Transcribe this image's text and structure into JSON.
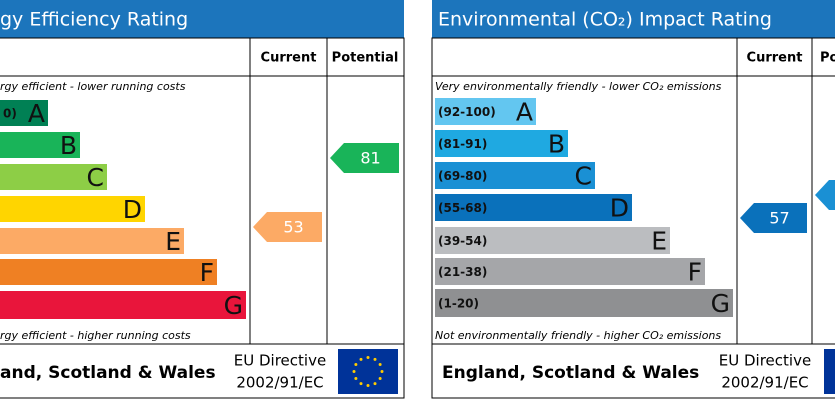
{
  "panels": [
    {
      "title": "gy Efficiency Rating",
      "current_label": "Current",
      "potential_label": "Potential",
      "top_note": "rgy efficient - lower running costs",
      "bottom_note": "rgy efficient - higher running costs",
      "bands": [
        {
          "label": "0)",
          "letter": "A",
          "color": "#008054"
        },
        {
          "letter": "B",
          "color": "#19b459"
        },
        {
          "letter": "C",
          "color": "#8dce46"
        },
        {
          "letter": "D",
          "color": "#ffd500"
        },
        {
          "letter": "E",
          "color": "#fcaa65"
        },
        {
          "letter": "F",
          "color": "#ef8023"
        },
        {
          "letter": "G",
          "color": "#e9153b"
        }
      ],
      "current": {
        "value": 53,
        "color": "#fcaa65"
      },
      "potential": {
        "value": 81,
        "color": "#19b459"
      },
      "footer": "and, Scotland & Wales",
      "directive": [
        "EU Directive",
        "2002/91/EC"
      ]
    },
    {
      "title": "Environmental (CO₂) Impact Rating",
      "current_label": "Current",
      "potential_label": "Po",
      "top_note": "Very environmentally friendly - lower CO₂ emissions",
      "bottom_note": "Not environmentally friendly - higher CO₂ emissions",
      "bands": [
        {
          "label": "(92-100)",
          "letter": "A",
          "color": "#63c6f0"
        },
        {
          "label": "(81-91)",
          "letter": "B",
          "color": "#1fa9e1"
        },
        {
          "label": "(69-80)",
          "letter": "C",
          "color": "#1a90d4"
        },
        {
          "label": "(55-68)",
          "letter": "D",
          "color": "#0a71bb"
        },
        {
          "label": "(39-54)",
          "letter": "E",
          "color": "#bbbdc0"
        },
        {
          "label": "(21-38)",
          "letter": "F",
          "color": "#a5a6a9"
        },
        {
          "label": "(1-20)",
          "letter": "G",
          "color": "#8f9092"
        }
      ],
      "current": {
        "value": 57,
        "color": "#0a71bb"
      },
      "footer": "England, Scotland & Wales",
      "directive": [
        "EU Directive",
        "2002/91/EC"
      ]
    }
  ]
}
